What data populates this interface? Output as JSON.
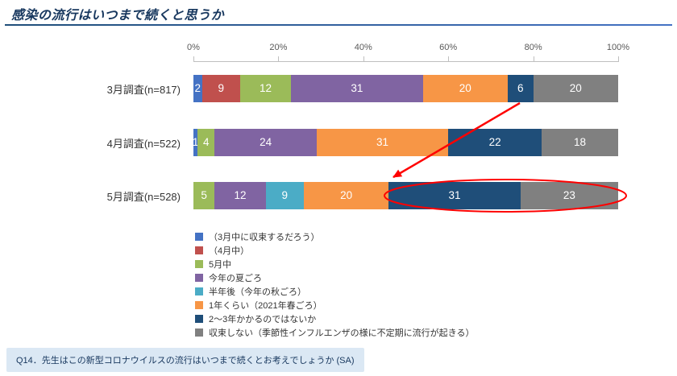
{
  "title": "感染の流行はいつまで続くと思うか",
  "chart_data": {
    "type": "bar",
    "stacked": true,
    "orientation": "horizontal",
    "x_axis": {
      "ticks": [
        "0%",
        "20%",
        "40%",
        "60%",
        "80%",
        "100%"
      ],
      "min": 0,
      "max": 100
    },
    "categories": [
      "3月調査(n=817)",
      "4月調査(n=522)",
      "5月調査(n=528)"
    ],
    "series": [
      {
        "name": "（3月中に収束するだろう）",
        "color": "#4472C4",
        "values": [
          2,
          1,
          0
        ]
      },
      {
        "name": "（4月中）",
        "color": "#C0504D",
        "values": [
          9,
          0,
          0
        ]
      },
      {
        "name": "5月中",
        "color": "#9BBB59",
        "values": [
          12,
          4,
          5
        ]
      },
      {
        "name": "今年の夏ごろ",
        "color": "#8064A2",
        "values": [
          31,
          24,
          12
        ]
      },
      {
        "name": "半年後（今年の秋ごろ）",
        "color": "#4BACC6",
        "values": [
          0,
          0,
          9
        ]
      },
      {
        "name": "1年くらい（2021年春ごろ）",
        "color": "#F79646",
        "values": [
          20,
          31,
          20
        ]
      },
      {
        "name": "2〜3年かかるのではないか",
        "color": "#1F4E79",
        "values": [
          6,
          22,
          31
        ]
      },
      {
        "name": "収束しない（季節性インフルエンザの様に不定期に流行が起きる）",
        "color": "#808080",
        "values": [
          20,
          18,
          23
        ]
      }
    ],
    "annotation_color": "#FF0000",
    "annotations": [
      {
        "type": "arrow",
        "from": "3月調査 2〜3年かかるのではないか (6)",
        "to": "5月調査 2〜3年かかるのではないか (31)"
      },
      {
        "type": "ellipse",
        "around": "5月調査 2〜3年かかるのではないか (31) と 収束しない (23)"
      }
    ],
    "legend_position": "bottom-left",
    "grid": false
  },
  "footer": {
    "question": "Q14．先生はこの新型コロナウイルスの流行はいつまで続くとお考えでしょうか (SA)"
  }
}
